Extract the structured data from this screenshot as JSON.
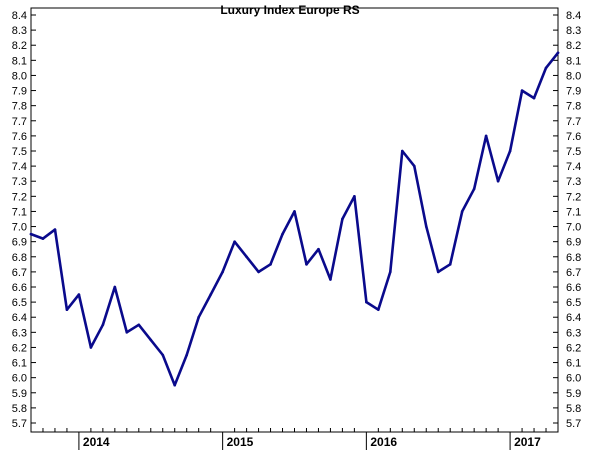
{
  "chart_data": {
    "type": "line",
    "title": "Luxury Index Europe RS",
    "xlabel": "",
    "ylabel": "",
    "ylim": [
      5.7,
      8.4
    ],
    "y_ticks": [
      "5.7",
      "5.8",
      "5.9",
      "6.0",
      "6.1",
      "6.2",
      "6.3",
      "6.4",
      "6.5",
      "6.6",
      "6.7",
      "6.8",
      "6.9",
      "7.0",
      "7.1",
      "7.2",
      "7.3",
      "7.4",
      "7.5",
      "7.6",
      "7.7",
      "7.8",
      "7.9",
      "8.0",
      "8.1",
      "8.2",
      "8.3",
      "8.4"
    ],
    "x_tick_labels": [
      "2014",
      "2015",
      "2016",
      "2017"
    ],
    "x_range": [
      "2013-09",
      "2017-05"
    ],
    "line_color": "#0a0a8c",
    "grid": false,
    "series": [
      {
        "x": [
          "2013-09",
          "2013-10",
          "2013-11",
          "2013-12",
          "2014-01",
          "2014-02",
          "2014-03",
          "2014-04",
          "2014-05",
          "2014-06",
          "2014-07",
          "2014-08",
          "2014-09",
          "2014-10",
          "2014-11",
          "2014-12",
          "2015-01",
          "2015-02",
          "2015-03",
          "2015-04",
          "2015-05",
          "2015-06",
          "2015-07",
          "2015-08",
          "2015-09",
          "2015-10",
          "2015-11",
          "2015-12",
          "2016-01",
          "2016-02",
          "2016-03",
          "2016-04",
          "2016-05",
          "2016-06",
          "2016-07",
          "2016-08",
          "2016-09",
          "2016-10",
          "2016-11",
          "2016-12",
          "2017-01",
          "2017-02",
          "2017-03",
          "2017-04",
          "2017-05"
        ],
        "values": [
          6.95,
          6.92,
          6.98,
          6.45,
          6.55,
          6.2,
          6.35,
          6.6,
          6.3,
          6.35,
          6.25,
          6.15,
          5.95,
          6.15,
          6.4,
          6.55,
          6.7,
          6.9,
          6.8,
          6.7,
          6.75,
          6.95,
          7.1,
          6.75,
          6.85,
          6.65,
          7.05,
          7.2,
          6.5,
          6.45,
          6.7,
          7.5,
          7.4,
          7.0,
          6.7,
          6.75,
          7.1,
          7.25,
          7.6,
          7.3,
          7.5,
          7.9,
          7.85,
          8.05,
          8.15
        ]
      }
    ]
  }
}
